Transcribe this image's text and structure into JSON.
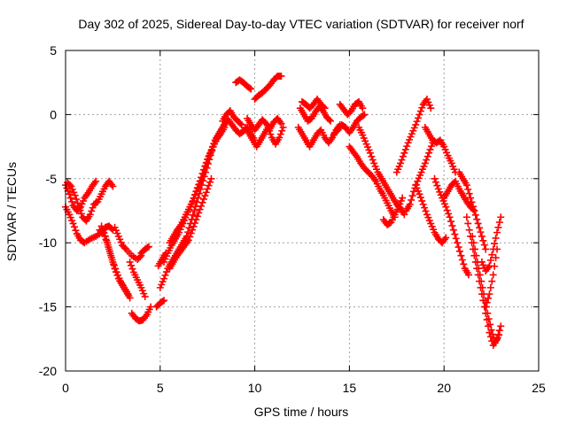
{
  "chart_data": {
    "type": "scatter",
    "title": "Day 302 of 2025, Sidereal Day-to-day VTEC variation (SDTVAR) for receiver norf",
    "xlabel": "GPS time / hours",
    "ylabel": "SDTVAR / TECUs",
    "xlim": [
      0,
      25
    ],
    "ylim": [
      -20,
      5
    ],
    "x_ticks": [
      "0",
      "5",
      "10",
      "15",
      "20",
      "25"
    ],
    "y_ticks": [
      "5",
      "0",
      "-5",
      "-10",
      "-15",
      "-20"
    ],
    "grid": true,
    "marker": "+",
    "color": "#ff0000",
    "series": [
      {
        "x": [
          0.0,
          0.2,
          0.4,
          0.6,
          0.8,
          1.0,
          1.3,
          1.6,
          1.9,
          2.1,
          2.3,
          2.5
        ],
        "y": [
          -7.2,
          -7.8,
          -8.5,
          -9.3,
          -9.8,
          -10.0,
          -9.7,
          -9.5,
          -9.2,
          -8.8,
          -8.7,
          -9.0
        ]
      },
      {
        "x": [
          0.1,
          0.3,
          0.5,
          0.7,
          0.9,
          1.1,
          1.3,
          1.5,
          1.7,
          1.9,
          2.1,
          2.3,
          2.5
        ],
        "y": [
          -5.3,
          -5.6,
          -6.3,
          -7.2,
          -8.0,
          -8.3,
          -7.8,
          -7.0,
          -6.8,
          -6.2,
          -5.6,
          -5.2,
          -5.6
        ]
      },
      {
        "x": [
          0.0,
          0.2,
          0.4,
          0.6,
          0.8,
          1.0,
          1.2,
          1.4,
          1.6
        ],
        "y": [
          -5.5,
          -6.2,
          -7.1,
          -7.5,
          -7.2,
          -6.5,
          -6.1,
          -5.6,
          -5.2
        ]
      },
      {
        "x": [
          1.8,
          2.0,
          2.2,
          2.4,
          2.6,
          2.8,
          3.0,
          3.2,
          3.4
        ],
        "y": [
          -9.0,
          -9.2,
          -10.0,
          -11.0,
          -12.0,
          -12.8,
          -13.3,
          -13.8,
          -14.3
        ]
      },
      {
        "x": [
          1.9,
          2.1,
          2.3,
          2.5,
          2.7,
          2.9,
          3.1,
          3.3
        ],
        "y": [
          -8.7,
          -9.5,
          -10.5,
          -11.5,
          -12.3,
          -13.0,
          -13.5,
          -14.0
        ]
      },
      {
        "x": [
          2.6,
          2.8,
          3.0,
          3.2,
          3.5,
          3.8,
          4.0
        ],
        "y": [
          -8.8,
          -9.5,
          -10.2,
          -10.5,
          -11.0,
          -11.3,
          -11.0
        ]
      },
      {
        "x": [
          3.5,
          3.7,
          3.9,
          4.1,
          4.3,
          4.5
        ],
        "y": [
          -15.5,
          -15.9,
          -16.1,
          -16.0,
          -15.6,
          -15.0
        ]
      },
      {
        "x": [
          3.4,
          3.6,
          3.8,
          4.0,
          4.2
        ],
        "y": [
          -11.5,
          -12.3,
          -12.9,
          -13.5,
          -14.2
        ]
      },
      {
        "x": [
          4.0,
          4.2,
          4.4
        ],
        "y": [
          -10.8,
          -10.5,
          -10.3
        ]
      },
      {
        "x": [
          5.0,
          5.2,
          5.4,
          5.6,
          5.8,
          6.0,
          6.2,
          6.4,
          6.6,
          6.8,
          7.0,
          7.2,
          7.4,
          7.6,
          7.8,
          8.0
        ],
        "y": [
          -13.5,
          -12.8,
          -12.0,
          -11.5,
          -11.0,
          -10.5,
          -10.0,
          -9.5,
          -8.5,
          -7.5,
          -6.5,
          -5.5,
          -4.5,
          -3.5,
          -2.5,
          -1.8
        ]
      },
      {
        "x": [
          5.2,
          5.4,
          5.6,
          5.8,
          6.0,
          6.2,
          6.4,
          6.6,
          6.8,
          7.0,
          7.2,
          7.4,
          7.6,
          7.8,
          8.0,
          8.2,
          8.4
        ],
        "y": [
          -11.5,
          -10.8,
          -10.2,
          -9.7,
          -9.2,
          -8.5,
          -7.8,
          -7.2,
          -6.5,
          -5.7,
          -4.9,
          -4.0,
          -3.2,
          -2.5,
          -1.9,
          -1.5,
          -1.0
        ]
      },
      {
        "x": [
          5.5,
          5.7,
          5.9,
          6.1,
          6.3,
          6.5,
          6.7,
          6.9,
          7.1,
          7.3,
          7.5,
          7.7,
          7.9,
          8.1,
          8.3,
          8.5
        ],
        "y": [
          -10.0,
          -9.5,
          -9.0,
          -8.6,
          -8.0,
          -7.4,
          -6.8,
          -6.0,
          -5.2,
          -4.3,
          -3.5,
          -2.8,
          -2.0,
          -1.5,
          -1.0,
          -0.5
        ]
      },
      {
        "x": [
          5.5,
          5.7,
          5.9,
          6.1,
          6.3,
          6.5,
          6.7,
          6.9,
          7.1,
          7.3,
          7.5,
          7.7
        ],
        "y": [
          -12.0,
          -11.5,
          -11.0,
          -10.6,
          -10.2,
          -9.8,
          -9.0,
          -8.2,
          -7.4,
          -6.6,
          -5.8,
          -5.0
        ]
      },
      {
        "x": [
          4.8,
          5.0,
          5.2
        ],
        "y": [
          -15.0,
          -14.7,
          -14.5
        ]
      },
      {
        "x": [
          4.9,
          5.1,
          5.3
        ],
        "y": [
          -11.8,
          -11.3,
          -10.8
        ]
      },
      {
        "x": [
          8.0,
          8.2,
          8.4,
          8.6,
          8.8,
          9.0,
          9.2,
          9.4,
          9.6,
          9.8,
          10.0
        ],
        "y": [
          -1.8,
          -1.3,
          -0.8,
          -0.4,
          -0.8,
          -1.2,
          -1.5,
          -1.3,
          -1.0,
          -1.5,
          -2.0
        ]
      },
      {
        "x": [
          8.3,
          8.5,
          8.7,
          8.9,
          9.1,
          9.3
        ],
        "y": [
          -0.5,
          0.0,
          0.3,
          -0.2,
          -0.5,
          -0.8
        ]
      },
      {
        "x": [
          9.0,
          9.2,
          9.4,
          9.6,
          9.8
        ],
        "y": [
          2.5,
          2.7,
          2.5,
          2.2,
          2.0
        ]
      },
      {
        "x": [
          9.5,
          9.7,
          9.9,
          10.1,
          10.3,
          10.5,
          10.7,
          10.9,
          11.1,
          11.3,
          11.5
        ],
        "y": [
          -1.0,
          -1.5,
          -2.0,
          -2.5,
          -2.0,
          -1.5,
          -1.0,
          -1.8,
          -2.3,
          -1.8,
          -1.0
        ]
      },
      {
        "x": [
          9.6,
          9.8,
          10.0,
          10.2,
          10.4,
          10.6,
          10.8,
          11.0,
          11.2,
          11.4
        ],
        "y": [
          -0.3,
          -0.8,
          -1.2,
          -0.8,
          -0.4,
          -0.7,
          -1.1,
          -0.6,
          -0.3,
          -0.7
        ]
      },
      {
        "x": [
          10.0,
          10.2,
          10.4,
          10.6,
          10.8,
          11.0,
          11.2,
          11.4
        ],
        "y": [
          1.2,
          1.5,
          1.7,
          2.0,
          2.3,
          2.7,
          3.0,
          3.0
        ]
      },
      {
        "x": [
          12.3,
          12.5,
          12.7,
          12.9,
          13.1,
          13.3,
          13.5,
          13.7,
          13.9,
          14.1,
          14.3,
          14.5
        ],
        "y": [
          -1.0,
          -1.5,
          -2.0,
          -2.5,
          -2.0,
          -1.5,
          -1.2,
          -1.8,
          -2.2,
          -1.8,
          -1.2,
          -0.8
        ]
      },
      {
        "x": [
          12.4,
          12.6,
          12.8,
          13.0,
          13.2,
          13.4,
          13.6,
          13.8,
          14.0
        ],
        "y": [
          0.5,
          0.0,
          -0.5,
          -0.3,
          0.2,
          0.6,
          0.3,
          -0.2,
          -0.5
        ]
      },
      {
        "x": [
          12.5,
          12.7,
          12.9,
          13.1,
          13.3,
          13.5,
          13.7
        ],
        "y": [
          1.0,
          0.8,
          0.5,
          0.8,
          1.2,
          0.8,
          0.5
        ]
      },
      {
        "x": [
          14.2,
          14.4,
          14.6,
          14.8,
          15.0,
          15.2,
          15.4,
          15.6,
          15.8
        ],
        "y": [
          -1.5,
          -1.2,
          -0.8,
          -1.0,
          -1.4,
          -1.0,
          -0.5,
          -0.2,
          0.0
        ]
      },
      {
        "x": [
          14.5,
          14.7,
          14.9,
          15.1,
          15.3,
          15.5,
          15.7
        ],
        "y": [
          0.8,
          0.4,
          0.0,
          0.3,
          0.8,
          1.0,
          0.5
        ]
      },
      {
        "x": [
          15.0,
          15.2,
          15.4,
          15.6,
          15.8,
          16.0,
          16.2,
          16.4,
          16.6,
          16.8,
          17.0,
          17.2,
          17.4
        ],
        "y": [
          -2.5,
          -2.9,
          -3.3,
          -3.8,
          -4.2,
          -4.5,
          -4.8,
          -5.2,
          -5.8,
          -6.3,
          -6.9,
          -7.5,
          -8.0
        ]
      },
      {
        "x": [
          15.5,
          15.7,
          15.9,
          16.1,
          16.3,
          16.5,
          16.7,
          16.9,
          17.1,
          17.3,
          17.5,
          17.7,
          17.9
        ],
        "y": [
          -1.0,
          -1.6,
          -2.3,
          -3.0,
          -3.8,
          -4.5,
          -5.0,
          -5.5,
          -6.0,
          -6.5,
          -7.0,
          -7.3,
          -7.8
        ]
      },
      {
        "x": [
          16.8,
          17.0,
          17.2,
          17.4,
          17.6,
          17.8
        ],
        "y": [
          -8.2,
          -8.6,
          -8.4,
          -7.8,
          -7.2,
          -6.5
        ]
      },
      {
        "x": [
          17.5,
          17.7,
          17.9,
          18.1,
          18.3,
          18.5,
          18.7,
          18.9,
          19.1,
          19.3
        ],
        "y": [
          -4.5,
          -3.8,
          -3.0,
          -2.2,
          -1.5,
          -0.8,
          0.0,
          0.8,
          1.2,
          0.5
        ]
      },
      {
        "x": [
          18.5,
          18.7,
          18.9,
          19.1,
          19.3,
          19.5,
          19.7,
          19.9,
          20.1
        ],
        "y": [
          -5.5,
          -6.2,
          -7.0,
          -7.8,
          -8.5,
          -9.2,
          -9.7,
          -10.0,
          -9.6
        ]
      },
      {
        "x": [
          18.0,
          18.2,
          18.4,
          18.6,
          18.8,
          19.0,
          19.2,
          19.4
        ],
        "y": [
          -7.5,
          -7.0,
          -6.0,
          -5.2,
          -4.5,
          -3.8,
          -3.0,
          -2.2
        ]
      },
      {
        "x": [
          19.0,
          19.2,
          19.4,
          19.6,
          19.8,
          20.0,
          20.2,
          20.4,
          20.6
        ],
        "y": [
          -1.0,
          -1.5,
          -2.0,
          -2.2,
          -2.0,
          -2.5,
          -3.2,
          -3.8,
          -4.5
        ]
      },
      {
        "x": [
          19.5,
          19.7,
          19.9,
          20.1,
          20.3,
          20.5,
          20.7,
          20.9,
          21.1,
          21.3
        ],
        "y": [
          -5.0,
          -5.8,
          -6.5,
          -7.2,
          -8.0,
          -9.0,
          -10.0,
          -11.0,
          -12.0,
          -12.5
        ]
      },
      {
        "x": [
          20.0,
          20.2,
          20.4,
          20.6,
          20.8,
          21.0,
          21.2,
          21.4,
          21.6
        ],
        "y": [
          -6.5,
          -6.0,
          -5.5,
          -5.2,
          -5.8,
          -6.3,
          -6.8,
          -7.2,
          -7.5
        ]
      },
      {
        "x": [
          20.8,
          21.0,
          21.2,
          21.4,
          21.6,
          21.8,
          22.0,
          22.2
        ],
        "y": [
          -4.5,
          -5.0,
          -5.5,
          -6.5,
          -7.5,
          -8.5,
          -9.5,
          -10.5
        ]
      },
      {
        "x": [
          21.2,
          21.4,
          21.6,
          21.8,
          22.0,
          22.2,
          22.4,
          22.6,
          22.8,
          23.0
        ],
        "y": [
          -8.0,
          -9.5,
          -11.0,
          -12.5,
          -14.0,
          -15.5,
          -17.0,
          -18.0,
          -17.5,
          -16.5
        ]
      },
      {
        "x": [
          21.5,
          21.7,
          21.9,
          22.1,
          22.3,
          22.5,
          22.7,
          22.9
        ],
        "y": [
          -9.5,
          -11.0,
          -12.5,
          -14.0,
          -15.5,
          -16.8,
          -17.8,
          -17.2
        ]
      },
      {
        "x": [
          22.0,
          22.2,
          22.4,
          22.6,
          22.8,
          23.0
        ],
        "y": [
          -11.5,
          -12.2,
          -11.8,
          -10.5,
          -9.2,
          -8.0
        ]
      },
      {
        "x": [
          22.2,
          22.4,
          22.6,
          22.8
        ],
        "y": [
          -15.0,
          -14.0,
          -12.5,
          -10.5
        ]
      }
    ]
  }
}
